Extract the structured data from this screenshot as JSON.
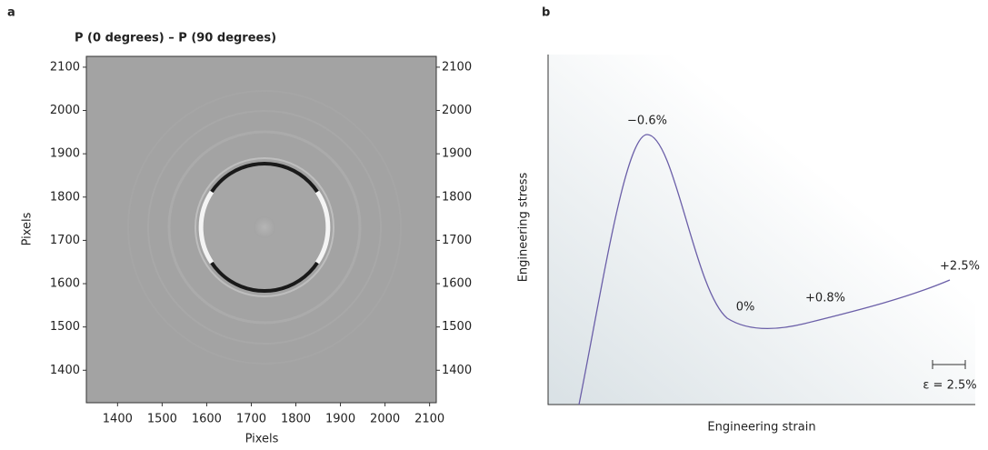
{
  "chart_data": [
    {
      "type": "image",
      "panel_label": "a",
      "title": "P (0 degrees) – P (90 degrees)",
      "xlabel": "Pixels",
      "ylabel": "Pixels",
      "xlim": [
        1330,
        2115
      ],
      "ylim": [
        1325,
        2125
      ],
      "xticks": [
        1400,
        1500,
        1600,
        1700,
        1800,
        1900,
        2000,
        2100
      ],
      "yticks": [
        1400,
        1500,
        1600,
        1700,
        1800,
        1900,
        2000,
        2100
      ]
    },
    {
      "type": "schematic",
      "panel_label": "b",
      "color": "#6b5fa8",
      "xlabel": "Engineering strain",
      "ylabel": "Engineering stress",
      "annotations": [
        "−0.6%",
        "0%",
        "+0.8%",
        "+2.5%"
      ],
      "scale_bar_label": "ε = 2.5%"
    }
  ]
}
